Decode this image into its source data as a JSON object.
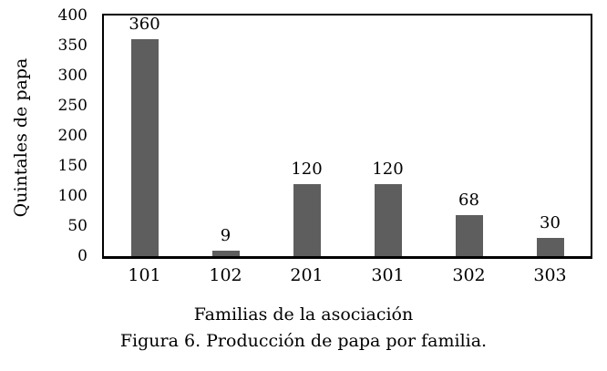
{
  "chart_data": {
    "type": "bar",
    "categories": [
      "101",
      "102",
      "201",
      "301",
      "302",
      "303"
    ],
    "values": [
      360,
      9,
      120,
      120,
      68,
      30
    ],
    "value_labels": [
      "360",
      "9",
      "120",
      "120",
      "68",
      "30"
    ],
    "title": "",
    "xlabel": "Familias de la asociación",
    "ylabel": "Quintales de papa",
    "ylim": [
      0,
      400
    ],
    "yticks": [
      0,
      50,
      100,
      150,
      200,
      250,
      300,
      350,
      400
    ],
    "grid": false,
    "legend": false,
    "bar_color": "#5e5e5e",
    "axis_color": "#000000",
    "plot_background": "#ffffff"
  },
  "caption": "Figura 6. Producción de papa por familia."
}
